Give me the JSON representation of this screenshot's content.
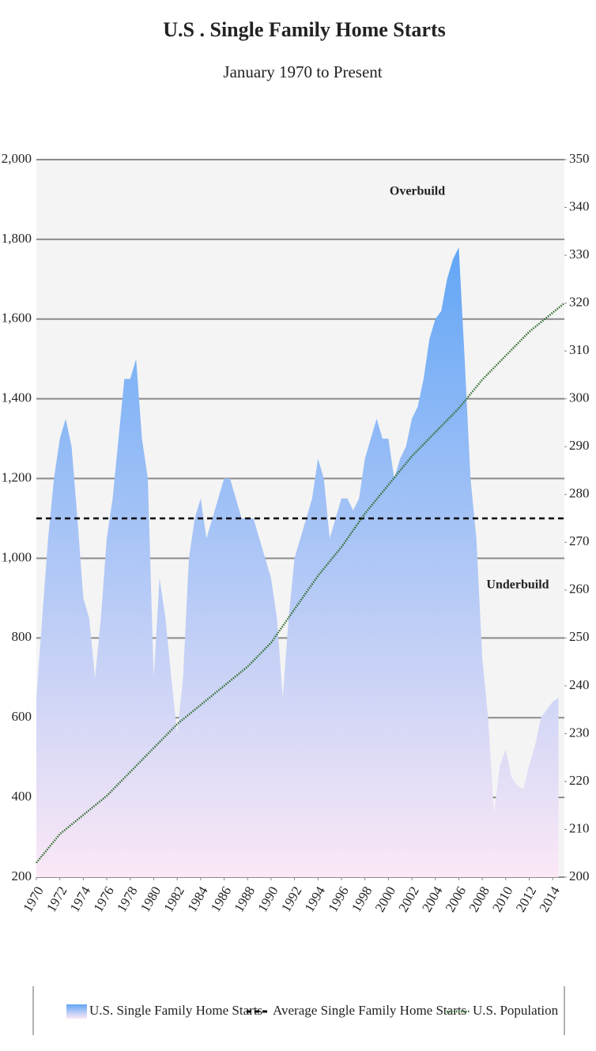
{
  "chart_data": {
    "type": "area",
    "title": "U.S . Single Family Home Starts",
    "subtitle": "January 1970 to Present",
    "x": [
      1970,
      1970.5,
      1971,
      1971.5,
      1972,
      1972.5,
      1973,
      1973.5,
      1974,
      1974.5,
      1975,
      1975.5,
      1976,
      1976.5,
      1977,
      1977.5,
      1978,
      1978.5,
      1979,
      1979.5,
      1980,
      1980.5,
      1981,
      1981.5,
      1982,
      1982.5,
      1983,
      1983.5,
      1984,
      1984.5,
      1985,
      1985.5,
      1986,
      1986.5,
      1987,
      1987.5,
      1988,
      1988.5,
      1989,
      1989.5,
      1990,
      1990.5,
      1991,
      1991.5,
      1992,
      1992.5,
      1993,
      1993.5,
      1994,
      1994.5,
      1995,
      1995.5,
      1996,
      1996.5,
      1997,
      1997.5,
      1998,
      1998.5,
      1999,
      1999.5,
      2000,
      2000.5,
      2001,
      2001.5,
      2002,
      2002.5,
      2003,
      2003.5,
      2004,
      2004.5,
      2005,
      2005.5,
      2006,
      2006.5,
      2007,
      2007.5,
      2008,
      2008.5,
      2009,
      2009.5,
      2010,
      2010.5,
      2011,
      2011.5,
      2012,
      2012.5,
      2013,
      2013.5,
      2014,
      2014.5
    ],
    "series": [
      {
        "name": "U.S. Single Family Home Starts",
        "color": "#62a6f6",
        "color_bottom": "#fbe8f6",
        "values": [
          650,
          850,
          1050,
          1200,
          1300,
          1350,
          1280,
          1100,
          900,
          850,
          700,
          850,
          1050,
          1150,
          1300,
          1450,
          1450,
          1500,
          1300,
          1200,
          700,
          950,
          850,
          700,
          560,
          700,
          1000,
          1100,
          1150,
          1050,
          1100,
          1150,
          1200,
          1200,
          1150,
          1100,
          1100,
          1100,
          1050,
          1000,
          950,
          850,
          650,
          850,
          1000,
          1050,
          1100,
          1150,
          1250,
          1200,
          1050,
          1100,
          1150,
          1150,
          1120,
          1150,
          1250,
          1300,
          1350,
          1300,
          1300,
          1200,
          1250,
          1280,
          1350,
          1380,
          1450,
          1550,
          1600,
          1620,
          1700,
          1750,
          1780,
          1500,
          1200,
          1050,
          750,
          600,
          360,
          480,
          520,
          450,
          430,
          420,
          480,
          530,
          600,
          620,
          640,
          650
        ]
      },
      {
        "name": "U.S. Population",
        "color": "#2e6b2e",
        "axis": "y2",
        "x": [
          1970,
          1972,
          1974,
          1976,
          1978,
          1980,
          1982,
          1984,
          1986,
          1988,
          1990,
          1992,
          1994,
          1996,
          1998,
          2000,
          2002,
          2004,
          2006,
          2008,
          2010,
          2012,
          2014,
          2015
        ],
        "values": [
          203,
          209,
          213,
          217,
          222,
          227,
          232,
          236,
          240,
          244,
          249,
          256,
          263,
          269,
          276,
          282,
          288,
          293,
          298,
          304,
          309,
          314,
          318,
          320
        ]
      }
    ],
    "average": {
      "name": "Average Single Family Home Starts",
      "value": 1100,
      "color": "#000000"
    },
    "annotations": [
      "Overbuild",
      "Underbuild"
    ],
    "xlim": [
      1970,
      2015
    ],
    "xticks": [
      1970,
      1972,
      1974,
      1976,
      1978,
      1980,
      1982,
      1984,
      1986,
      1988,
      1990,
      1992,
      1994,
      1996,
      1998,
      2000,
      2002,
      2004,
      2006,
      2008,
      2010,
      2012,
      2014
    ],
    "ylim": [
      200,
      2000
    ],
    "yticks": [
      {
        "value": 200,
        "label": "200"
      },
      {
        "value": 400,
        "label": "400"
      },
      {
        "value": 600,
        "label": "600"
      },
      {
        "value": 800,
        "label": "800"
      },
      {
        "value": 1000,
        "label": "1,000"
      },
      {
        "value": 1200,
        "label": "1,200"
      },
      {
        "value": 1400,
        "label": "1,400"
      },
      {
        "value": 1600,
        "label": "1,600"
      },
      {
        "value": 1800,
        "label": "1,800"
      },
      {
        "value": 2000,
        "label": "2,000"
      }
    ],
    "y2lim": [
      200,
      350
    ],
    "y2ticks": [
      200,
      210,
      220,
      230,
      240,
      250,
      260,
      270,
      280,
      290,
      300,
      310,
      320,
      330,
      340,
      350
    ],
    "grid": true
  }
}
